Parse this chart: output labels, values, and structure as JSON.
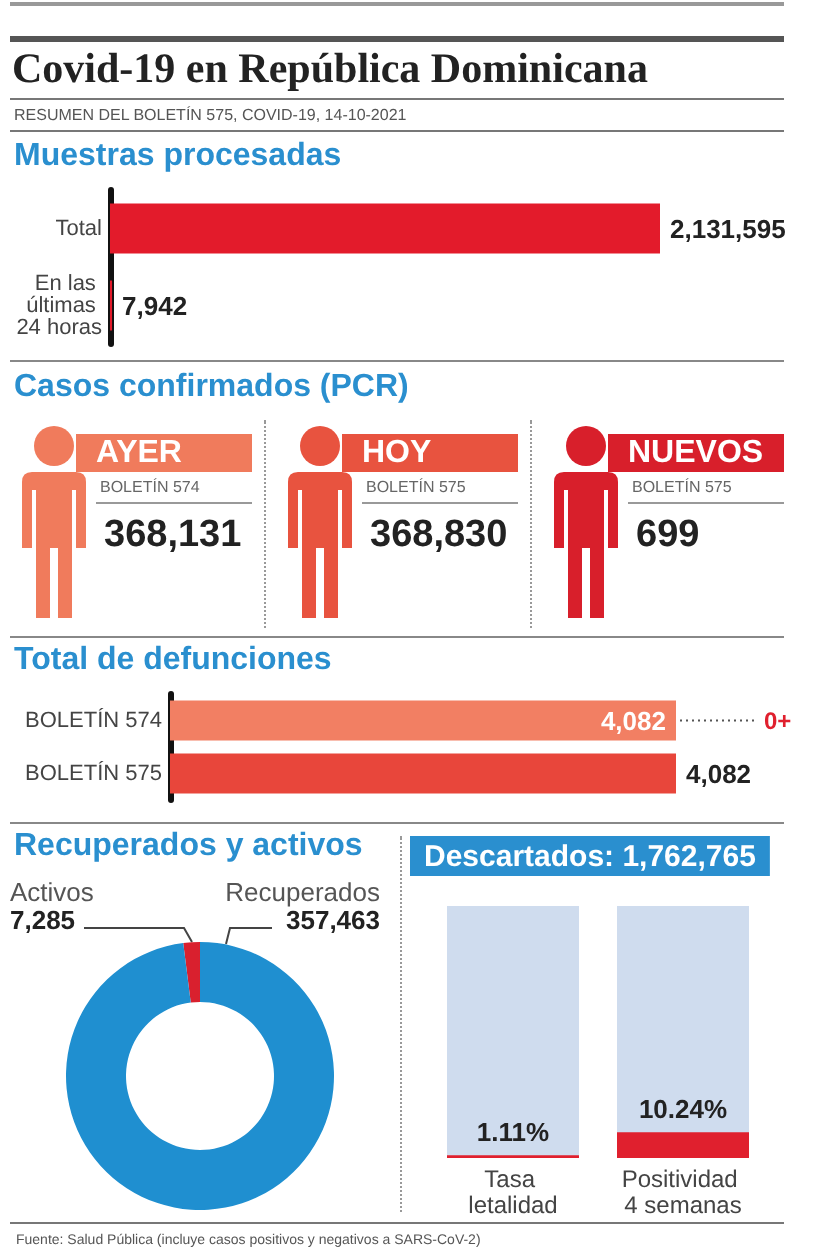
{
  "chart_data": [
    {
      "type": "other",
      "title": "Covid-19 en República Dominicana",
      "subtitle": "RESUMEN DEL BOLETÍN 575, COVID-19, 14-10-2021"
    },
    {
      "type": "bar",
      "title": "Muestras procesadas",
      "orientation": "horizontal",
      "categories": [
        "Total",
        "En las últimas 24 horas"
      ],
      "values": [
        2131595,
        7942
      ],
      "value_labels": [
        "2,131,595",
        "7,942"
      ],
      "color": "#e31b2b"
    },
    {
      "type": "other",
      "title": "Casos confirmados (PCR)",
      "categories": [
        "AYER",
        "HOY",
        "NUEVOS"
      ],
      "values": [
        368131,
        368830,
        699
      ],
      "value_labels": [
        "368,131",
        "368,830",
        "699"
      ],
      "colors": [
        "#f07b5c",
        "#e8533f",
        "#d81f2b"
      ],
      "annotations": [
        "BOLETÍN 574",
        "BOLETÍN 575",
        "BOLETÍN 575"
      ]
    },
    {
      "type": "bar",
      "title": "Total de defunciones",
      "orientation": "horizontal",
      "categories": [
        "BOLETÍN 574",
        "BOLETÍN 575"
      ],
      "values": [
        4082,
        4082
      ],
      "value_labels": [
        "4,082",
        "4,082"
      ],
      "colors": [
        "#f27f63",
        "#e8463b"
      ],
      "annotations": [
        "0+"
      ]
    },
    {
      "type": "donut",
      "title": "Recuperados y activos",
      "categories": [
        "Activos",
        "Recuperados"
      ],
      "values": [
        7285,
        357463
      ],
      "value_labels": [
        "7,285",
        "357,463"
      ],
      "colors": [
        "#d9202e",
        "#1f8fd0"
      ]
    },
    {
      "type": "bar",
      "title": "Descartados: 1,762,765",
      "categories": [
        "Tasa letalidad",
        "Positividad 4 semanas"
      ],
      "values": [
        1.11,
        10.24
      ],
      "value_labels": [
        "1.11%",
        "10.24%"
      ],
      "color": "#e0202e",
      "ylim": [
        0,
        100
      ]
    },
    {
      "type": "other",
      "annotations": [
        "Fuente: Salud Pública (incluye casos positivos y negativos a SARS-CoV-2)"
      ]
    }
  ]
}
